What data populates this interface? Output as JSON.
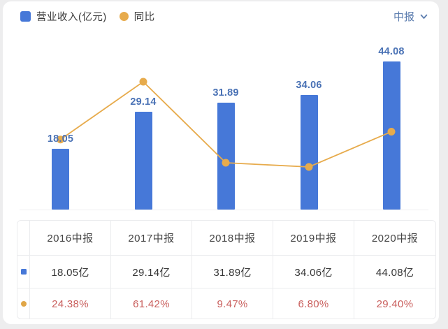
{
  "legend": {
    "revenue_label": "营业收入(亿元)",
    "yoy_label": "同比"
  },
  "period_selector": {
    "label": "中报",
    "chevron_icon": "chevron-down"
  },
  "colors": {
    "bar": "#4678d8",
    "line": "#e7ab4c",
    "bar_value_label": "#4a72b5",
    "percent_text": "#c95e5c",
    "selector_text": "#5b7cae"
  },
  "chart_data": {
    "type": "bar",
    "title": "",
    "categories": [
      "2016中报",
      "2017中报",
      "2018中报",
      "2019中报",
      "2020中报"
    ],
    "series": [
      {
        "name": "营业收入(亿元)",
        "type": "bar",
        "unit": "亿元",
        "values": [
          18.05,
          29.14,
          31.89,
          34.06,
          44.08
        ]
      },
      {
        "name": "同比",
        "type": "line",
        "unit": "%",
        "values": [
          24.38,
          61.42,
          9.47,
          6.8,
          29.4
        ]
      }
    ],
    "data_labels": [
      "18.05",
      "29.14",
      "31.89",
      "34.06",
      "44.08"
    ],
    "grid": false,
    "legend_position": "top-left",
    "axes_visible": false
  },
  "table": {
    "columns": [
      "2016中报",
      "2017中报",
      "2018中报",
      "2019中报",
      "2020中报"
    ],
    "rows": [
      {
        "series": "营业收入",
        "icon": "bar-series-icon",
        "cells": [
          "18.05亿",
          "29.14亿",
          "31.89亿",
          "34.06亿",
          "44.08亿"
        ]
      },
      {
        "series": "同比",
        "icon": "line-series-icon",
        "cells": [
          "24.38%",
          "61.42%",
          "9.47%",
          "6.80%",
          "29.40%"
        ]
      }
    ]
  }
}
